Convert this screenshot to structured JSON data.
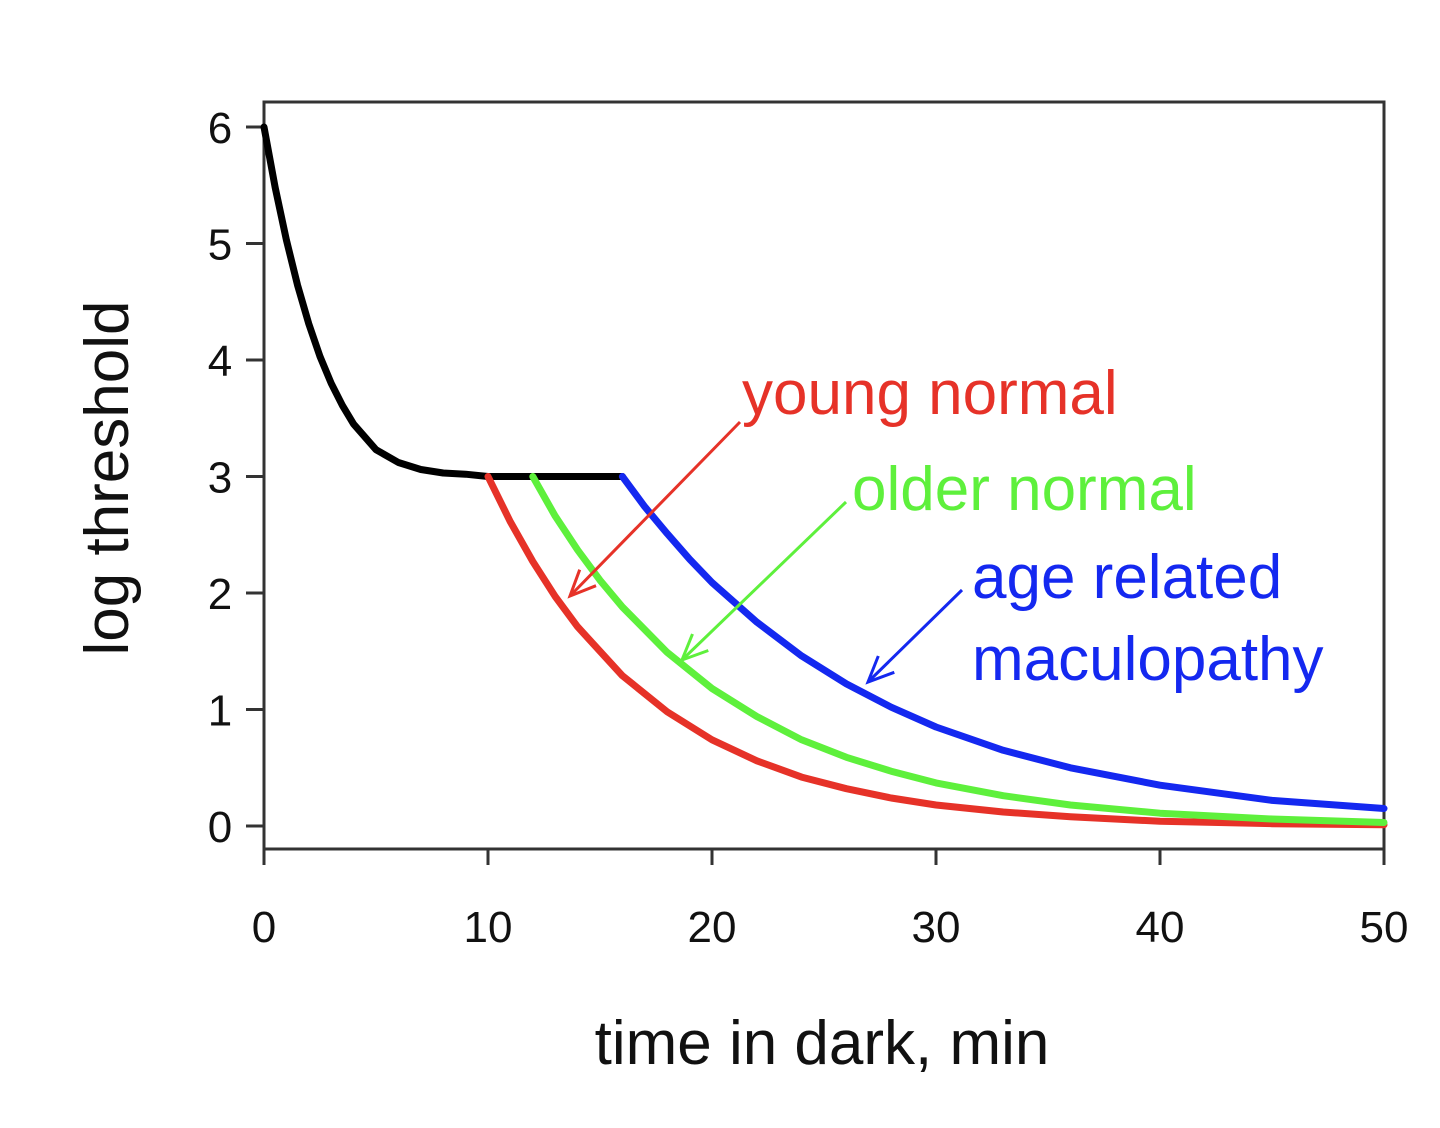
{
  "chart_data": {
    "type": "line",
    "title": "",
    "xlabel": "time in dark, min",
    "ylabel": "log threshold",
    "xlim": [
      0,
      50
    ],
    "ylim": [
      -0.2,
      6.2
    ],
    "x_ticks": [
      0,
      10,
      20,
      30,
      40,
      50
    ],
    "y_ticks": [
      0,
      1,
      2,
      3,
      4,
      5,
      6
    ],
    "grid": false,
    "series": [
      {
        "color": "#000000",
        "x": [
          0,
          0.5,
          1,
          1.5,
          2,
          2.5,
          3,
          3.5,
          4,
          5,
          6,
          7,
          8,
          9,
          10,
          12,
          14,
          16
        ],
        "y": [
          6.0,
          5.48,
          5.03,
          4.64,
          4.31,
          4.03,
          3.8,
          3.61,
          3.45,
          3.23,
          3.12,
          3.06,
          3.03,
          3.02,
          3.0,
          3.0,
          3.0,
          3.0
        ]
      },
      {
        "name": "young normal",
        "color": "#e63228",
        "x": [
          10,
          11,
          12,
          13,
          14,
          16,
          18,
          20,
          22,
          24,
          26,
          28,
          30,
          33,
          36,
          40,
          45,
          50
        ],
        "y": [
          3.0,
          2.61,
          2.27,
          1.97,
          1.71,
          1.29,
          0.98,
          0.74,
          0.56,
          0.42,
          0.32,
          0.24,
          0.18,
          0.12,
          0.08,
          0.04,
          0.02,
          0.01
        ]
      },
      {
        "name": "older normal",
        "color": "#5ef03c",
        "x": [
          12,
          13,
          14,
          15,
          16,
          18,
          20,
          22,
          24,
          26,
          28,
          30,
          33,
          36,
          40,
          45,
          50
        ],
        "y": [
          3.0,
          2.66,
          2.37,
          2.11,
          1.88,
          1.49,
          1.18,
          0.94,
          0.74,
          0.59,
          0.47,
          0.37,
          0.26,
          0.18,
          0.11,
          0.06,
          0.03
        ]
      },
      {
        "name": "age related maculopathy",
        "color": "#1428f0",
        "x": [
          16,
          17,
          18,
          19,
          20,
          22,
          24,
          26,
          28,
          30,
          33,
          36,
          40,
          45,
          50
        ],
        "y": [
          3.0,
          2.74,
          2.51,
          2.29,
          2.09,
          1.75,
          1.46,
          1.22,
          1.02,
          0.85,
          0.65,
          0.5,
          0.35,
          0.22,
          0.15
        ]
      }
    ],
    "annotations": [
      {
        "text": "young normal",
        "color": "#e63228",
        "lines": [
          "young normal"
        ]
      },
      {
        "text": "older normal",
        "color": "#5ef03c",
        "lines": [
          "older normal"
        ]
      },
      {
        "text": "age related maculopathy",
        "color": "#1428f0",
        "lines": [
          "age related",
          "maculopathy"
        ]
      }
    ]
  }
}
